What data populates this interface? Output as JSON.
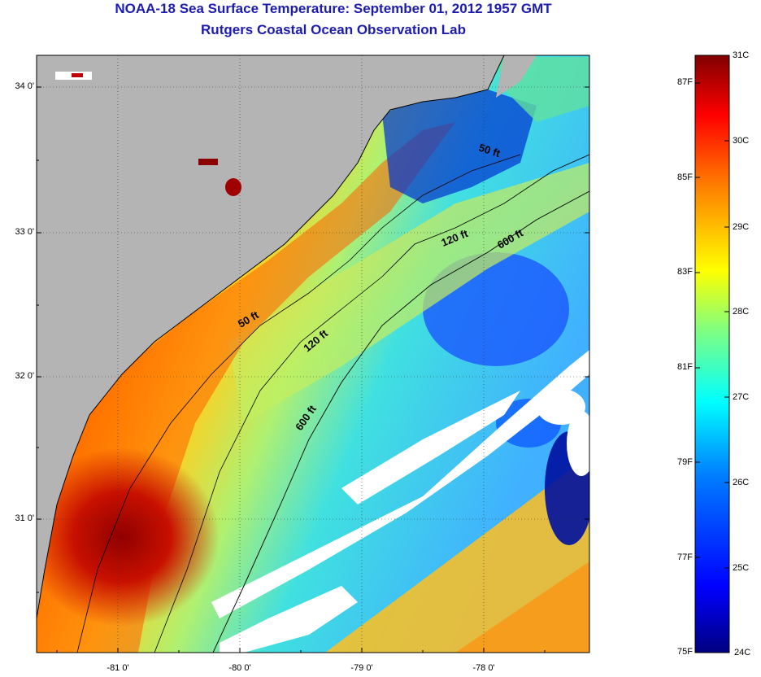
{
  "title": {
    "line1": "NOAA-18 Sea Surface Temperature:  September 01, 2012 1957 GMT",
    "line2": "Rutgers Coastal Ocean Observation Lab"
  },
  "map": {
    "lat_ticks": [
      "34 0'",
      "33 0'",
      "32 0'",
      "31 0'"
    ],
    "lon_ticks": [
      "-81 0'",
      "-80 0'",
      "-79 0'",
      "-78 0'"
    ],
    "isobaths": [
      "50 ft",
      "120 ft",
      "600 ft"
    ],
    "contour_labels": [
      {
        "text": "50 ft"
      },
      {
        "text": "120 ft"
      },
      {
        "text": "600 ft"
      },
      {
        "text": "50 ft"
      },
      {
        "text": "120 ft"
      },
      {
        "text": "600 ft"
      }
    ]
  },
  "colorbar": {
    "celsius": [
      "31C",
      "30C",
      "29C",
      "28C",
      "27C",
      "26C",
      "25C",
      "24C"
    ],
    "fahrenheit": [
      "87F",
      "85F",
      "83F",
      "81F",
      "79F",
      "77F",
      "75F"
    ],
    "colors": [
      "#000080",
      "#0000ff",
      "#0080ff",
      "#00ffff",
      "#80ff80",
      "#ffff00",
      "#ff8000",
      "#ff0000",
      "#800000"
    ]
  }
}
